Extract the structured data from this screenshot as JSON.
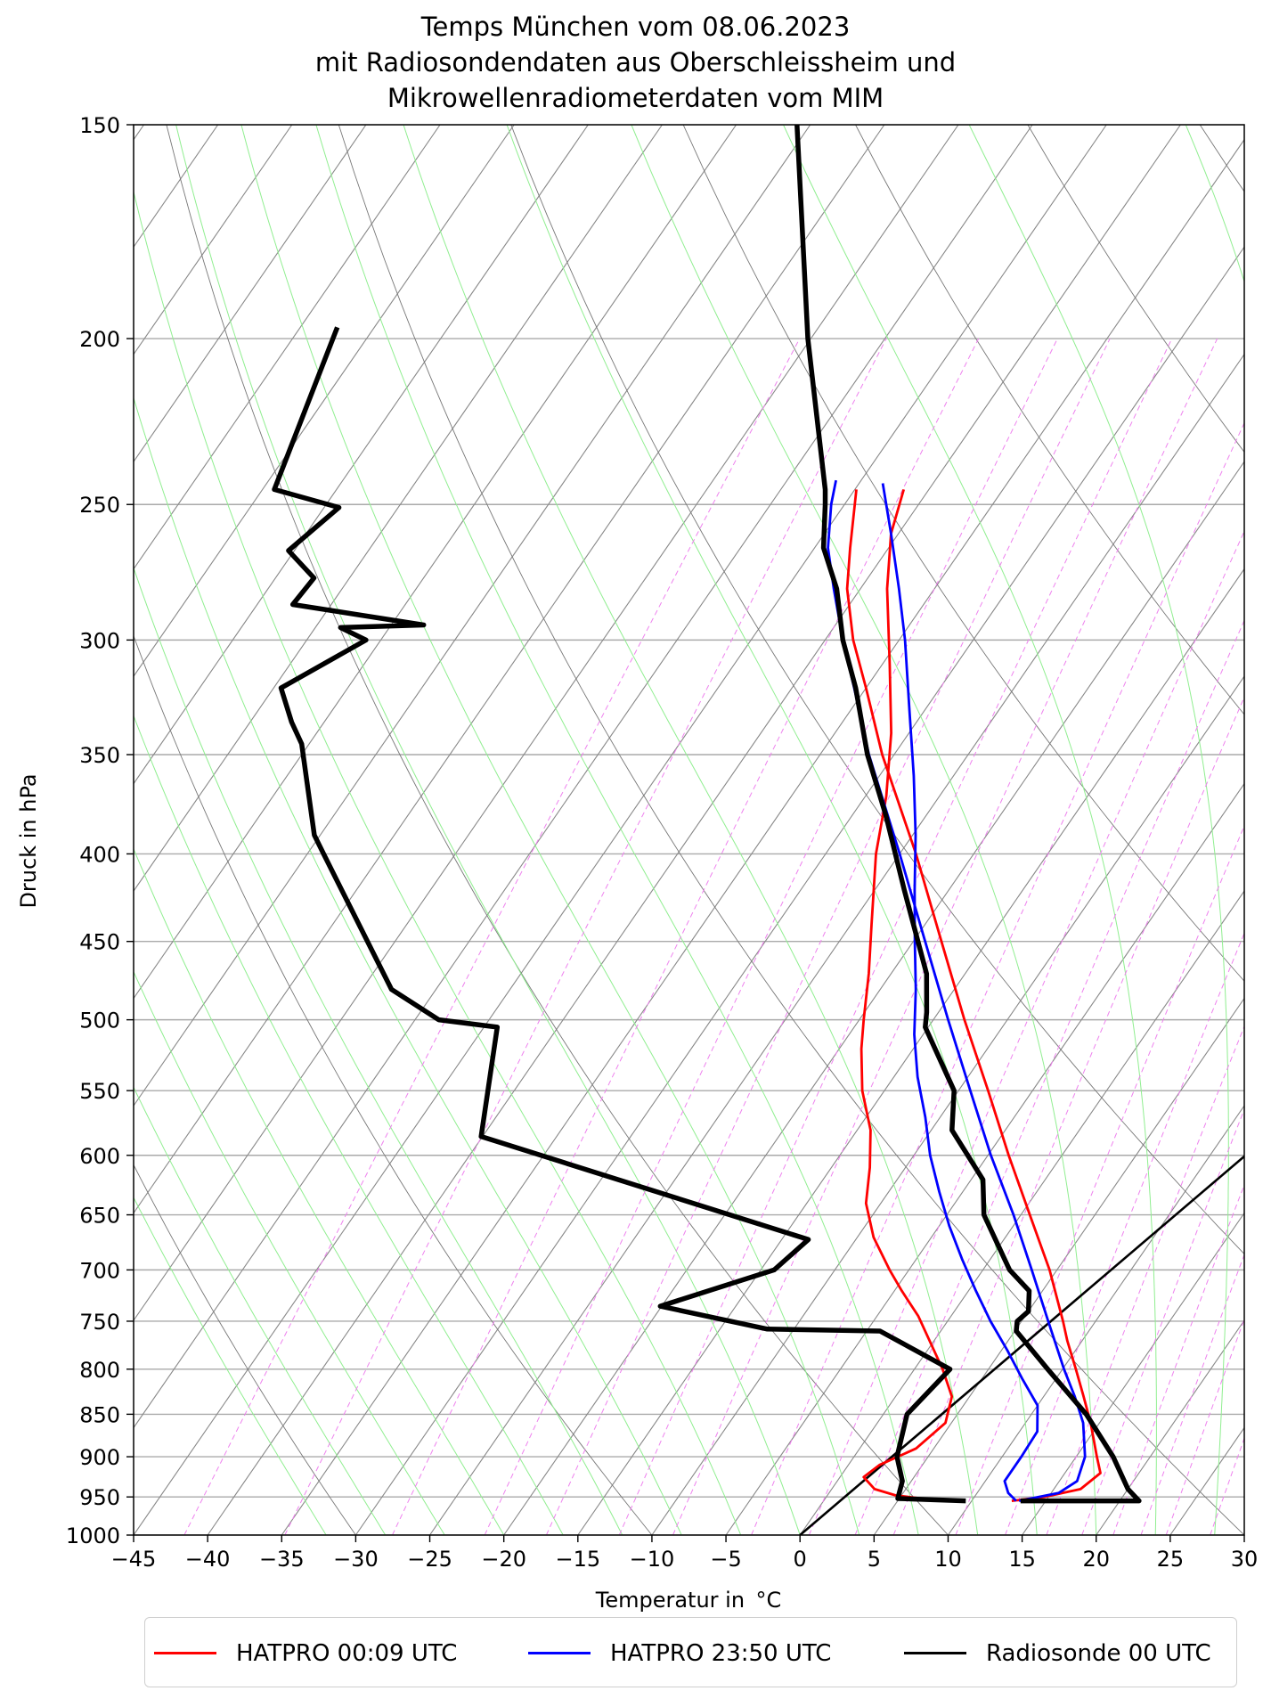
{
  "title_lines": [
    "Temps München vom 08.06.2023",
    "mit Radiosondendaten aus Oberschleissheim und",
    "Mikrowellenradiometerdaten vom MIM"
  ],
  "chart_data": {
    "type": "line",
    "subtype": "skew-T log-p",
    "xlabel": "Temperatur in  °C",
    "ylabel": "Druck in hPa",
    "xlim": [
      -45,
      30
    ],
    "ylim": [
      1000,
      150
    ],
    "y_scale": "log",
    "x_ticks": [
      -45,
      -40,
      -35,
      -30,
      -25,
      -20,
      -15,
      -10,
      -5,
      0,
      5,
      10,
      15,
      20,
      25,
      30
    ],
    "x_tick_labels": [
      "−45",
      "−40",
      "−35",
      "−30",
      "−25",
      "−20",
      "−15",
      "−10",
      "−5",
      "0",
      "5",
      "10",
      "15",
      "20",
      "25",
      "30"
    ],
    "y_ticks": [
      150,
      200,
      250,
      300,
      350,
      400,
      450,
      500,
      550,
      600,
      650,
      700,
      750,
      800,
      850,
      900,
      950,
      1000
    ],
    "y_tick_labels": [
      "150",
      "200",
      "250",
      "300",
      "350",
      "400",
      "450",
      "500",
      "550",
      "600",
      "650",
      "700",
      "750",
      "800",
      "850",
      "900",
      "950",
      "1000"
    ],
    "grid": true,
    "legend_position": "bottom, outside",
    "colors": {
      "isotherm": "#888888",
      "dry_adiabat": "#888888",
      "moist_adiabat": "#90ee90",
      "mixing_ratio": "#ee82ee",
      "hatpro_0009": "#ff0000",
      "hatpro_2350": "#0000ff",
      "radiosonde": "#000000"
    },
    "series": [
      {
        "name": "HATPRO 00:09 UTC",
        "color": "#ff0000",
        "temperature": [
          {
            "p": 955,
            "t": 9.5
          },
          {
            "p": 952,
            "t": 6.5
          },
          {
            "p": 948,
            "t": 4.6
          },
          {
            "p": 940,
            "t": 2.9
          },
          {
            "p": 925,
            "t": 1.6
          },
          {
            "p": 910,
            "t": 2.1
          },
          {
            "p": 890,
            "t": 3.8
          },
          {
            "p": 860,
            "t": 4.6
          },
          {
            "p": 830,
            "t": 3.8
          },
          {
            "p": 800,
            "t": 1.9
          },
          {
            "p": 770,
            "t": -0.3
          },
          {
            "p": 745,
            "t": -2.2
          },
          {
            "p": 720,
            "t": -4.5
          },
          {
            "p": 700,
            "t": -6.3
          },
          {
            "p": 670,
            "t": -8.9
          },
          {
            "p": 640,
            "t": -11.0
          },
          {
            "p": 610,
            "t": -12.4
          },
          {
            "p": 580,
            "t": -14.1
          },
          {
            "p": 550,
            "t": -16.5
          },
          {
            "p": 520,
            "t": -18.5
          },
          {
            "p": 500,
            "t": -19.7
          },
          {
            "p": 470,
            "t": -21.5
          },
          {
            "p": 440,
            "t": -23.6
          },
          {
            "p": 400,
            "t": -26.6
          },
          {
            "p": 370,
            "t": -28.6
          },
          {
            "p": 340,
            "t": -31.2
          },
          {
            "p": 310,
            "t": -34.5
          },
          {
            "p": 280,
            "t": -38.2
          },
          {
            "p": 260,
            "t": -40.5
          },
          {
            "p": 245,
            "t": -41.7
          }
        ],
        "dewpoint": [
          {
            "p": 955,
            "t": 12.7
          },
          {
            "p": 950,
            "t": 14.7
          },
          {
            "p": 940,
            "t": 16.8
          },
          {
            "p": 920,
            "t": 17.4
          },
          {
            "p": 900,
            "t": 16.4
          },
          {
            "p": 860,
            "t": 14.4
          },
          {
            "p": 830,
            "t": 12.7
          },
          {
            "p": 800,
            "t": 10.9
          },
          {
            "p": 770,
            "t": 9.0
          },
          {
            "p": 750,
            "t": 7.8
          },
          {
            "p": 700,
            "t": 4.5
          },
          {
            "p": 650,
            "t": 0.6
          },
          {
            "p": 600,
            "t": -3.6
          },
          {
            "p": 550,
            "t": -8.0
          },
          {
            "p": 500,
            "t": -12.9
          },
          {
            "p": 450,
            "t": -18.1
          },
          {
            "p": 400,
            "t": -23.9
          },
          {
            "p": 350,
            "t": -30.8
          },
          {
            "p": 320,
            "t": -35.0
          },
          {
            "p": 300,
            "t": -38.1
          },
          {
            "p": 280,
            "t": -40.9
          },
          {
            "p": 265,
            "t": -42.6
          },
          {
            "p": 245,
            "t": -44.9
          }
        ]
      },
      {
        "name": "HATPRO 23:50 UTC",
        "color": "#0000ff",
        "temperature": [
          {
            "p": 955,
            "t": 13.0
          },
          {
            "p": 945,
            "t": 12.1
          },
          {
            "p": 930,
            "t": 11.3
          },
          {
            "p": 900,
            "t": 11.3
          },
          {
            "p": 870,
            "t": 11.2
          },
          {
            "p": 840,
            "t": 10.0
          },
          {
            "p": 810,
            "t": 7.7
          },
          {
            "p": 780,
            "t": 5.4
          },
          {
            "p": 750,
            "t": 2.9
          },
          {
            "p": 720,
            "t": 0.5
          },
          {
            "p": 690,
            "t": -1.9
          },
          {
            "p": 660,
            "t": -4.3
          },
          {
            "p": 630,
            "t": -6.6
          },
          {
            "p": 600,
            "t": -8.9
          },
          {
            "p": 570,
            "t": -11.0
          },
          {
            "p": 540,
            "t": -13.4
          },
          {
            "p": 510,
            "t": -15.6
          },
          {
            "p": 480,
            "t": -17.6
          },
          {
            "p": 450,
            "t": -19.9
          },
          {
            "p": 420,
            "t": -22.3
          },
          {
            "p": 390,
            "t": -24.8
          },
          {
            "p": 360,
            "t": -27.7
          },
          {
            "p": 330,
            "t": -31.0
          },
          {
            "p": 300,
            "t": -34.6
          },
          {
            "p": 280,
            "t": -37.4
          },
          {
            "p": 260,
            "t": -40.5
          },
          {
            "p": 243,
            "t": -43.4
          }
        ],
        "dewpoint": [
          {
            "p": 955,
            "t": 13.2
          },
          {
            "p": 945,
            "t": 15.5
          },
          {
            "p": 930,
            "t": 16.2
          },
          {
            "p": 900,
            "t": 15.6
          },
          {
            "p": 860,
            "t": 13.9
          },
          {
            "p": 830,
            "t": 12.1
          },
          {
            "p": 800,
            "t": 10.1
          },
          {
            "p": 750,
            "t": 6.8
          },
          {
            "p": 700,
            "t": 3.3
          },
          {
            "p": 650,
            "t": -0.5
          },
          {
            "p": 600,
            "t": -4.8
          },
          {
            "p": 550,
            "t": -9.2
          },
          {
            "p": 500,
            "t": -14.0
          },
          {
            "p": 450,
            "t": -19.2
          },
          {
            "p": 400,
            "t": -25.0
          },
          {
            "p": 350,
            "t": -31.7
          },
          {
            "p": 320,
            "t": -35.8
          },
          {
            "p": 300,
            "t": -38.8
          },
          {
            "p": 280,
            "t": -41.8
          },
          {
            "p": 265,
            "t": -44.1
          },
          {
            "p": 250,
            "t": -45.9
          },
          {
            "p": 242,
            "t": -46.7
          }
        ]
      },
      {
        "name": "Radiosonde 00 UTC",
        "color": "#000000",
        "temperature": [
          {
            "p": 955,
            "t": 13.3
          },
          {
            "p": 955,
            "t": 21.3
          },
          {
            "p": 940,
            "t": 20.0
          },
          {
            "p": 900,
            "t": 17.5
          },
          {
            "p": 850,
            "t": 13.7
          },
          {
            "p": 800,
            "t": 9.0
          },
          {
            "p": 760,
            "t": 5.1
          },
          {
            "p": 750,
            "t": 4.7
          },
          {
            "p": 740,
            "t": 5.0
          },
          {
            "p": 720,
            "t": 4.1
          },
          {
            "p": 700,
            "t": 1.8
          },
          {
            "p": 650,
            "t": -2.5
          },
          {
            "p": 620,
            "t": -4.2
          },
          {
            "p": 580,
            "t": -8.6
          },
          {
            "p": 550,
            "t": -10.3
          },
          {
            "p": 505,
            "t": -15.2
          },
          {
            "p": 495,
            "t": -15.8
          },
          {
            "p": 470,
            "t": -17.6
          },
          {
            "p": 420,
            "t": -23.0
          },
          {
            "p": 380,
            "t": -27.7
          },
          {
            "p": 350,
            "t": -31.8
          },
          {
            "p": 320,
            "t": -35.7
          },
          {
            "p": 300,
            "t": -38.8
          },
          {
            "p": 280,
            "t": -41.6
          },
          {
            "p": 265,
            "t": -44.4
          },
          {
            "p": 250,
            "t": -46.3
          },
          {
            "p": 245,
            "t": -47.0
          },
          {
            "p": 200,
            "t": -55.2
          },
          {
            "p": 150,
            "t": -65.9
          }
        ],
        "dewpoint": [
          {
            "p": 955,
            "t": 9.6
          },
          {
            "p": 952,
            "t": 4.9
          },
          {
            "p": 930,
            "t": 4.4
          },
          {
            "p": 900,
            "t": 2.9
          },
          {
            "p": 850,
            "t": 1.6
          },
          {
            "p": 800,
            "t": 2.4
          },
          {
            "p": 760,
            "t": -4.1
          },
          {
            "p": 758,
            "t": -11.8
          },
          {
            "p": 735,
            "t": -20.1
          },
          {
            "p": 700,
            "t": -14.1
          },
          {
            "p": 672,
            "t": -13.2
          },
          {
            "p": 585,
            "t": -40.1
          },
          {
            "p": 505,
            "t": -44.1
          },
          {
            "p": 500,
            "t": -48.4
          },
          {
            "p": 480,
            "t": -53.0
          },
          {
            "p": 400,
            "t": -63.9
          },
          {
            "p": 390,
            "t": -65.4
          },
          {
            "p": 345,
            "t": -70.5
          },
          {
            "p": 335,
            "t": -72.2
          },
          {
            "p": 320,
            "t": -74.5
          },
          {
            "p": 300,
            "t": -71.0
          },
          {
            "p": 295,
            "t": -73.3
          },
          {
            "p": 294,
            "t": -67.8
          },
          {
            "p": 286,
            "t": -77.6
          },
          {
            "p": 276,
            "t": -77.4
          },
          {
            "p": 266,
            "t": -80.4
          },
          {
            "p": 251,
            "t": -79.0
          },
          {
            "p": 245,
            "t": -84.2
          },
          {
            "p": 197,
            "t": -87.5
          }
        ]
      }
    ],
    "reference_line": {
      "color": "#000000",
      "points": [
        {
          "p": 1000,
          "t": 0.0
        },
        {
          "p": 273,
          "t": 31.5
        }
      ]
    }
  }
}
